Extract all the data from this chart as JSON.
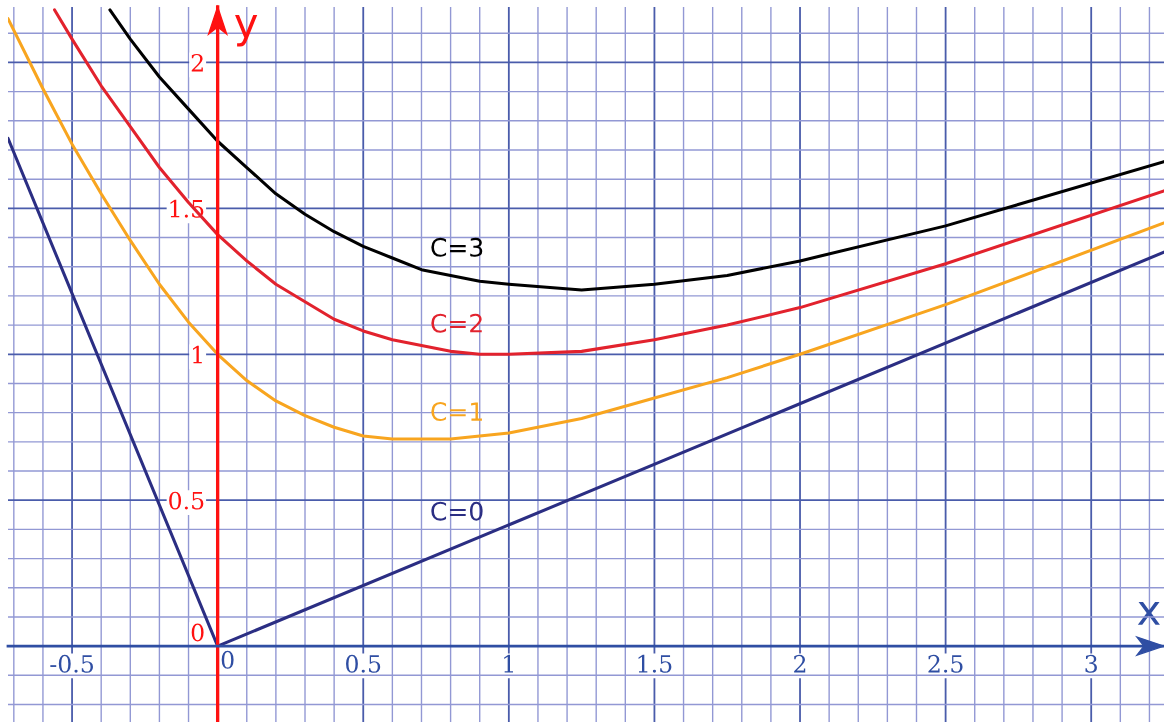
{
  "chart_data": {
    "type": "line",
    "xlabel": "x",
    "ylabel": "y",
    "xlim": [
      -0.72,
      3.25
    ],
    "ylim": [
      -0.26,
      2.19
    ],
    "xticks": [
      {
        "value": -0.7,
        "label": null
      },
      {
        "value": -0.6,
        "label": null
      },
      -0.5,
      {
        "value": -0.4,
        "label": null
      },
      {
        "value": -0.3,
        "label": null
      },
      {
        "value": -0.2,
        "label": null
      },
      {
        "value": -0.1,
        "label": null
      },
      0,
      {
        "value": 0.1,
        "label": null
      },
      {
        "value": 0.2,
        "label": null
      },
      {
        "value": 0.3,
        "label": null
      },
      {
        "value": 0.4,
        "label": null
      },
      0.5,
      {
        "value": 0.6,
        "label": null
      },
      {
        "value": 0.7,
        "label": null
      },
      {
        "value": 0.8,
        "label": null
      },
      {
        "value": 0.9,
        "label": null
      },
      1,
      {
        "value": 1.1,
        "label": null
      },
      {
        "value": 1.2,
        "label": null
      },
      {
        "value": 1.3,
        "label": null
      },
      {
        "value": 1.4,
        "label": null
      },
      1.5,
      {
        "value": 1.6,
        "label": null
      },
      {
        "value": 1.7,
        "label": null
      },
      {
        "value": 1.8,
        "label": null
      },
      {
        "value": 1.9,
        "label": null
      },
      2,
      {
        "value": 2.1,
        "label": null
      },
      {
        "value": 2.2,
        "label": null
      },
      {
        "value": 2.3,
        "label": null
      },
      {
        "value": 2.4,
        "label": null
      },
      2.5,
      {
        "value": 2.6,
        "label": null
      },
      {
        "value": 2.7,
        "label": null
      },
      {
        "value": 2.8,
        "label": null
      },
      {
        "value": 2.9,
        "label": null
      },
      3,
      {
        "value": 3.1,
        "label": null
      },
      {
        "value": 3.2,
        "label": null
      }
    ],
    "yticks": [
      {
        "value": -0.2,
        "label": null
      },
      {
        "value": -0.1,
        "label": null
      },
      0,
      {
        "value": 0.1,
        "label": null
      },
      {
        "value": 0.2,
        "label": null
      },
      {
        "value": 0.3,
        "label": null
      },
      {
        "value": 0.4,
        "label": null
      },
      0.5,
      {
        "value": 0.6,
        "label": null
      },
      {
        "value": 0.7,
        "label": null
      },
      {
        "value": 0.8,
        "label": null
      },
      {
        "value": 0.9,
        "label": null
      },
      1,
      {
        "value": 1.1,
        "label": null
      },
      {
        "value": 1.2,
        "label": null
      },
      {
        "value": 1.3,
        "label": null
      },
      {
        "value": 1.4,
        "label": null
      },
      1.5,
      {
        "value": 1.6,
        "label": null
      },
      {
        "value": 1.7,
        "label": null
      },
      {
        "value": 1.8,
        "label": null
      },
      {
        "value": 1.9,
        "label": null
      },
      2,
      {
        "value": 2.1,
        "label": null
      }
    ],
    "grid": true,
    "series": [
      {
        "name": "C=3",
        "color": "#000000",
        "x": [
          -0.37,
          -0.3,
          -0.2,
          -0.1,
          0,
          0.1,
          0.2,
          0.3,
          0.4,
          0.5,
          0.6,
          0.7,
          0.8,
          0.9,
          1,
          1.25,
          1.5,
          1.75,
          2,
          2.5,
          3.25
        ],
        "values": [
          2.18,
          2.08,
          1.95,
          1.84,
          1.73,
          1.64,
          1.55,
          1.48,
          1.42,
          1.37,
          1.33,
          1.29,
          1.27,
          1.25,
          1.24,
          1.22,
          1.24,
          1.27,
          1.32,
          1.44,
          1.66
        ]
      },
      {
        "name": "C=2",
        "color": "#e2222d",
        "x": [
          -0.56,
          -0.5,
          -0.4,
          -0.3,
          -0.2,
          -0.1,
          0,
          0.1,
          0.2,
          0.3,
          0.4,
          0.5,
          0.6,
          0.7,
          0.8,
          0.9,
          1,
          1.25,
          1.5,
          1.75,
          2,
          2.5,
          3.25
        ],
        "values": [
          2.18,
          2.08,
          1.92,
          1.78,
          1.64,
          1.52,
          1.41,
          1.32,
          1.24,
          1.18,
          1.12,
          1.08,
          1.05,
          1.03,
          1.01,
          1.0,
          1.0,
          1.01,
          1.05,
          1.1,
          1.16,
          1.31,
          1.56
        ]
      },
      {
        "name": "C=1",
        "color": "#f8a51f",
        "x": [
          -0.72,
          -0.6,
          -0.5,
          -0.4,
          -0.3,
          -0.2,
          -0.1,
          0,
          0.1,
          0.2,
          0.3,
          0.4,
          0.5,
          0.6,
          0.7,
          0.8,
          0.9,
          1,
          1.25,
          1.5,
          1.75,
          2,
          2.5,
          3.25
        ],
        "values": [
          2.15,
          1.91,
          1.72,
          1.55,
          1.39,
          1.24,
          1.11,
          1.0,
          0.91,
          0.84,
          0.79,
          0.75,
          0.72,
          0.71,
          0.71,
          0.71,
          0.72,
          0.73,
          0.78,
          0.85,
          0.92,
          1.0,
          1.17,
          1.45
        ]
      },
      {
        "name": "C=0",
        "color": "#2b2e83",
        "x": [
          -0.72,
          0,
          3.25
        ],
        "values": [
          1.74,
          0,
          1.35
        ]
      }
    ]
  }
}
